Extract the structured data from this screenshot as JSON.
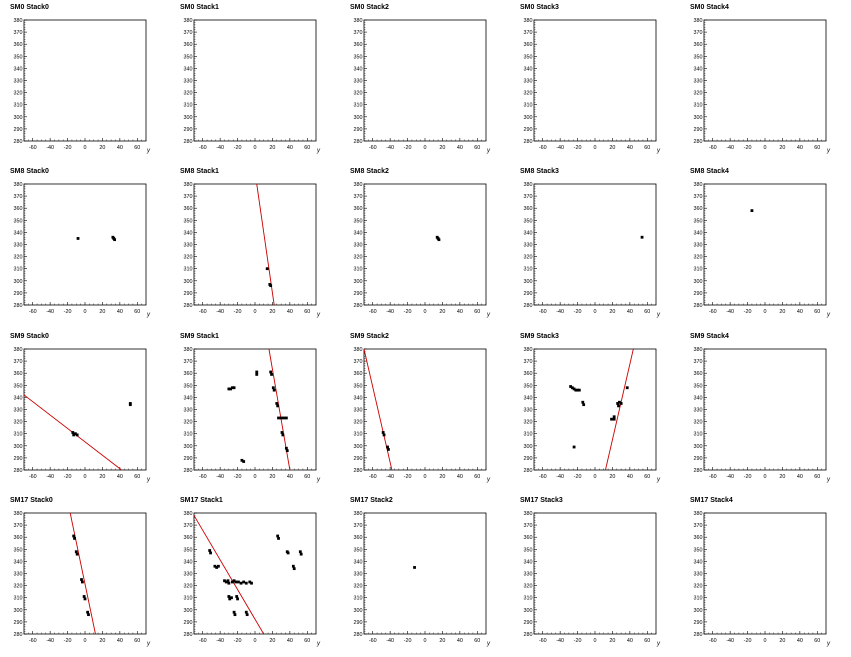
{
  "axis": {
    "xlabel": "y",
    "xlim": [
      -70,
      70
    ],
    "ylim": [
      280,
      380
    ],
    "xticks": [
      -60,
      -40,
      -20,
      0,
      20,
      40,
      60
    ],
    "yticks": [
      280,
      290,
      300,
      310,
      320,
      330,
      340,
      350,
      360,
      370,
      380
    ]
  },
  "colors": {
    "track": "#cc0000",
    "hit": "#000000",
    "frame": "#000000"
  },
  "chart_data": [
    {
      "type": "scatter",
      "title": "SM0 Stack0",
      "points": [],
      "tracks": []
    },
    {
      "type": "scatter",
      "title": "SM0 Stack1",
      "points": [],
      "tracks": []
    },
    {
      "type": "scatter",
      "title": "SM0 Stack2",
      "points": [],
      "tracks": []
    },
    {
      "type": "scatter",
      "title": "SM0 Stack3",
      "points": [],
      "tracks": []
    },
    {
      "type": "scatter",
      "title": "SM0 Stack4",
      "points": [],
      "tracks": []
    },
    {
      "type": "scatter",
      "title": "SM8 Stack0",
      "points": [
        [
          -8,
          335
        ],
        [
          32,
          336
        ],
        [
          33,
          335
        ],
        [
          34,
          334
        ]
      ],
      "tracks": []
    },
    {
      "type": "scatter",
      "title": "SM8 Stack1",
      "points": [
        [
          14,
          310
        ],
        [
          17,
          297
        ],
        [
          18,
          296
        ]
      ],
      "tracks": [
        [
          [
            2,
            380
          ],
          [
            22,
            280
          ]
        ]
      ]
    },
    {
      "type": "scatter",
      "title": "SM8 Stack2",
      "points": [
        [
          14,
          336
        ],
        [
          15,
          335
        ],
        [
          16,
          334
        ]
      ],
      "tracks": []
    },
    {
      "type": "scatter",
      "title": "SM8 Stack3",
      "points": [
        [
          54,
          336
        ]
      ],
      "tracks": []
    },
    {
      "type": "scatter",
      "title": "SM8 Stack4",
      "points": [
        [
          -15,
          358
        ]
      ],
      "tracks": []
    },
    {
      "type": "scatter",
      "title": "SM9 Stack0",
      "points": [
        [
          -14,
          311
        ],
        [
          -13,
          309
        ],
        [
          -11,
          310
        ],
        [
          -9,
          309
        ],
        [
          52,
          335
        ],
        [
          52,
          334
        ]
      ],
      "tracks": [
        [
          [
            -70,
            342
          ],
          [
            42,
            280
          ]
        ]
      ]
    },
    {
      "type": "scatter",
      "title": "SM9 Stack1",
      "points": [
        [
          -30,
          347
        ],
        [
          -28,
          347
        ],
        [
          -26,
          348
        ],
        [
          -24,
          348
        ],
        [
          2,
          361
        ],
        [
          2,
          359
        ],
        [
          18,
          361
        ],
        [
          19,
          359
        ],
        [
          21,
          348
        ],
        [
          22,
          346
        ],
        [
          25,
          335
        ],
        [
          26,
          333
        ],
        [
          27,
          323
        ],
        [
          30,
          323
        ],
        [
          33,
          323
        ],
        [
          36,
          323
        ],
        [
          31,
          311
        ],
        [
          32,
          309
        ],
        [
          36,
          298
        ],
        [
          37,
          296
        ],
        [
          -15,
          288
        ],
        [
          -13,
          287
        ]
      ],
      "tracks": [
        [
          [
            16,
            380
          ],
          [
            40,
            280
          ]
        ]
      ]
    },
    {
      "type": "scatter",
      "title": "SM9 Stack2",
      "points": [
        [
          -48,
          311
        ],
        [
          -47,
          309
        ],
        [
          -43,
          299
        ],
        [
          -42,
          297
        ]
      ],
      "tracks": [
        [
          [
            -70,
            380
          ],
          [
            -38,
            280
          ]
        ]
      ]
    },
    {
      "type": "scatter",
      "title": "SM9 Stack3",
      "points": [
        [
          -28,
          349
        ],
        [
          -26,
          348
        ],
        [
          -24,
          347
        ],
        [
          -22,
          346
        ],
        [
          -20,
          346
        ],
        [
          -18,
          346
        ],
        [
          -14,
          336
        ],
        [
          -13,
          334
        ],
        [
          -24,
          299
        ],
        [
          19,
          322
        ],
        [
          22,
          322
        ],
        [
          22,
          324
        ],
        [
          26,
          335
        ],
        [
          27,
          333
        ],
        [
          28,
          336
        ],
        [
          30,
          335
        ],
        [
          37,
          348
        ]
      ],
      "tracks": [
        [
          [
            12,
            280
          ],
          [
            44,
            380
          ]
        ]
      ]
    },
    {
      "type": "scatter",
      "title": "SM9 Stack4",
      "points": [],
      "tracks": []
    },
    {
      "type": "scatter",
      "title": "SM17 Stack0",
      "points": [
        [
          -13,
          361
        ],
        [
          -12,
          359
        ],
        [
          -10,
          348
        ],
        [
          -9,
          346
        ],
        [
          -4,
          325
        ],
        [
          -3,
          323
        ],
        [
          -1,
          311
        ],
        [
          0,
          309
        ],
        [
          3,
          298
        ],
        [
          4,
          296
        ]
      ],
      "tracks": [
        [
          [
            -17,
            380
          ],
          [
            12,
            280
          ]
        ]
      ]
    },
    {
      "type": "scatter",
      "title": "SM17 Stack1",
      "points": [
        [
          -52,
          349
        ],
        [
          -51,
          347
        ],
        [
          -46,
          336
        ],
        [
          -44,
          335
        ],
        [
          -42,
          336
        ],
        [
          -35,
          324
        ],
        [
          -33,
          323
        ],
        [
          -31,
          324
        ],
        [
          -30,
          322
        ],
        [
          -30,
          311
        ],
        [
          -29,
          309
        ],
        [
          -27,
          310
        ],
        [
          -26,
          323
        ],
        [
          -24,
          324
        ],
        [
          -22,
          323
        ],
        [
          -19,
          323
        ],
        [
          -16,
          322
        ],
        [
          -13,
          323
        ],
        [
          -10,
          322
        ],
        [
          -6,
          323
        ],
        [
          -4,
          322
        ],
        [
          -24,
          298
        ],
        [
          -23,
          296
        ],
        [
          -21,
          311
        ],
        [
          -20,
          309
        ],
        [
          -10,
          298
        ],
        [
          -9,
          296
        ],
        [
          26,
          361
        ],
        [
          27,
          359
        ],
        [
          37,
          348
        ],
        [
          38,
          347
        ],
        [
          44,
          336
        ],
        [
          45,
          334
        ],
        [
          52,
          348
        ],
        [
          53,
          346
        ]
      ],
      "tracks": [
        [
          [
            -70,
            378
          ],
          [
            10,
            280
          ]
        ]
      ]
    },
    {
      "type": "scatter",
      "title": "SM17 Stack2",
      "points": [
        [
          -12,
          335
        ]
      ],
      "tracks": []
    },
    {
      "type": "scatter",
      "title": "SM17 Stack3",
      "points": [],
      "tracks": []
    },
    {
      "type": "scatter",
      "title": "SM17 Stack4",
      "points": [],
      "tracks": []
    }
  ]
}
